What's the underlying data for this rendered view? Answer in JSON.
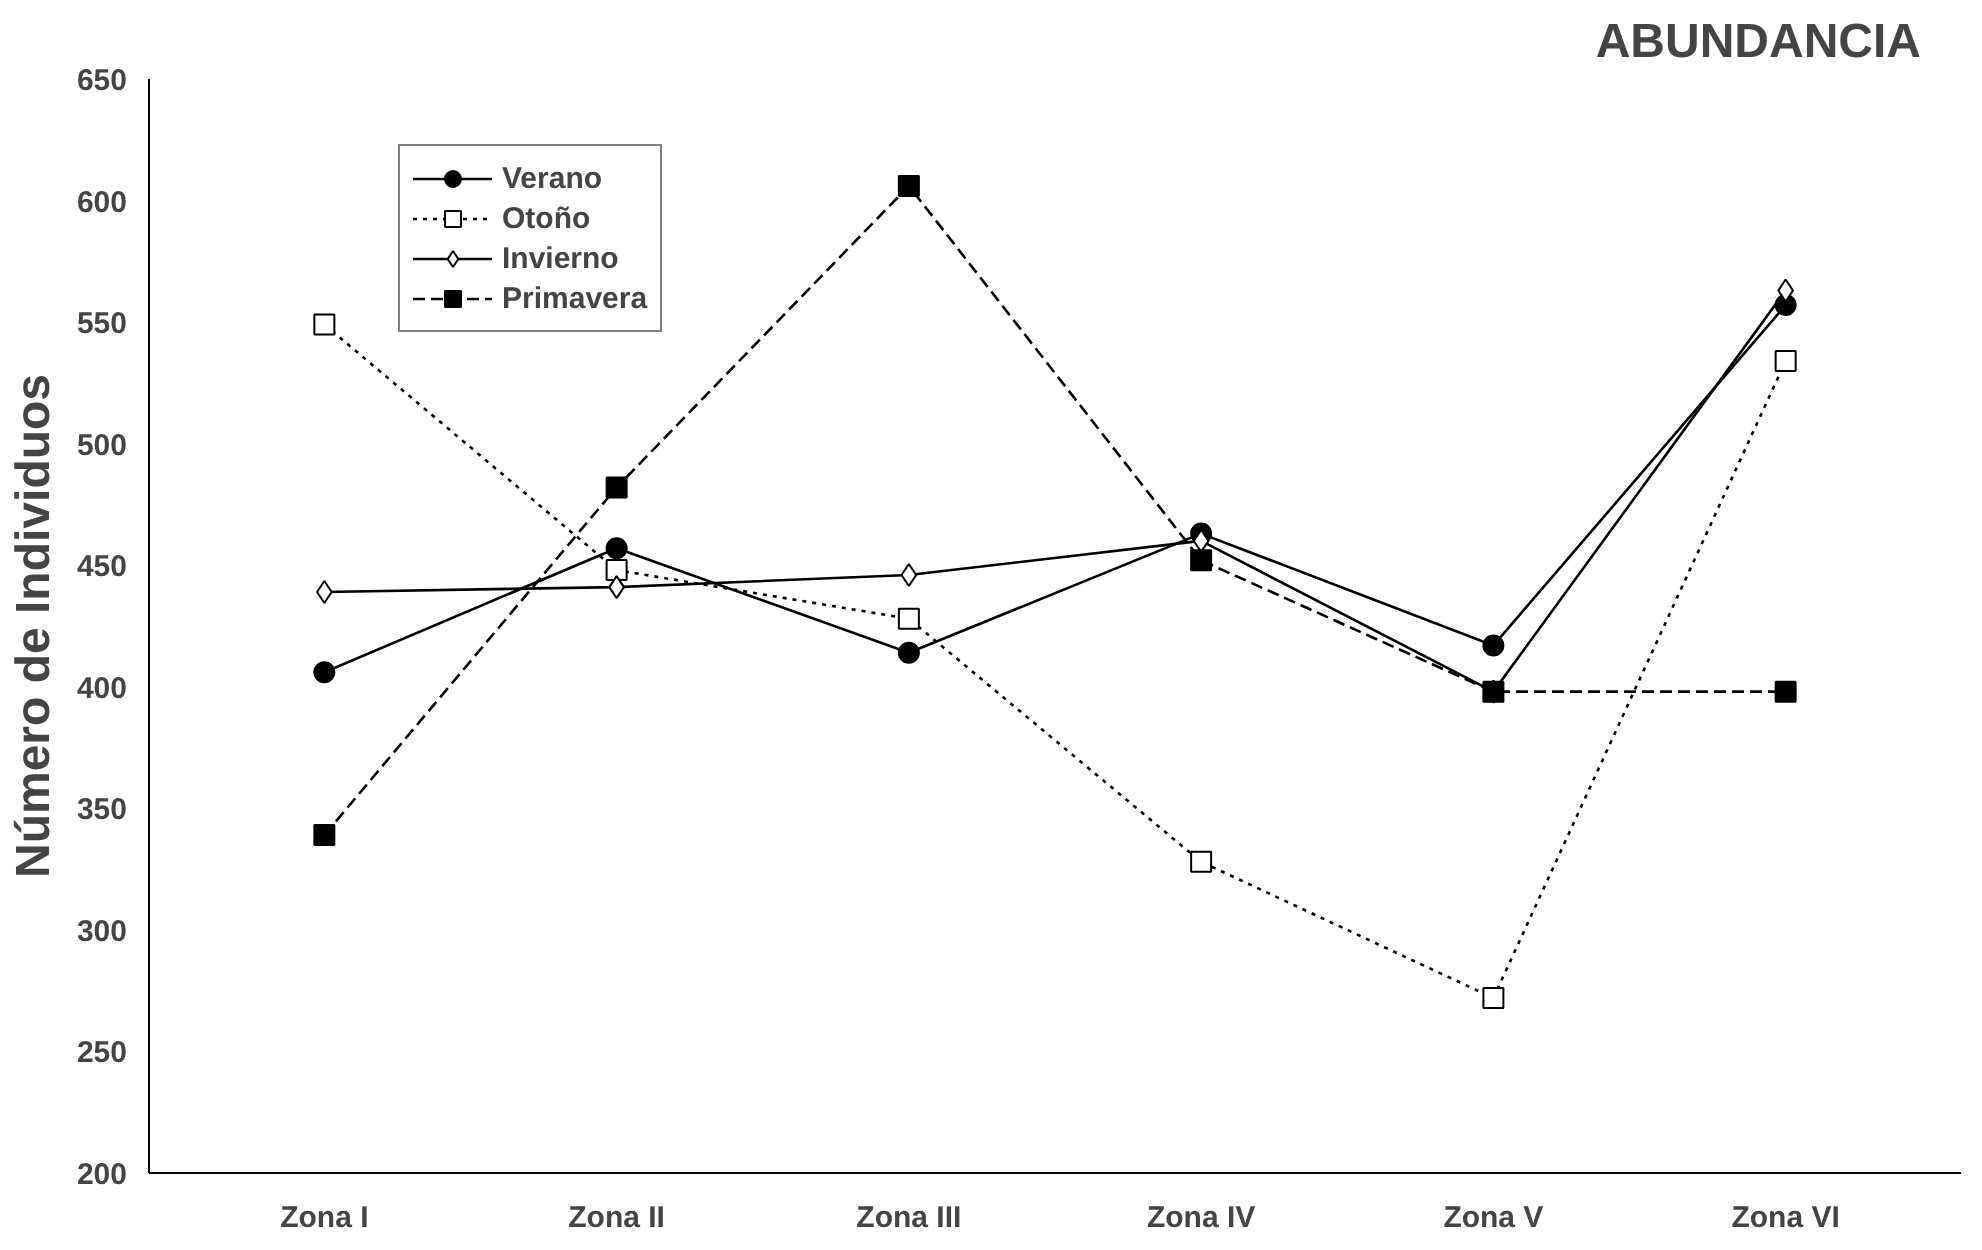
{
  "chart_data": {
    "type": "line",
    "title": "ABUNDANCIA",
    "ylabel": "Número de Individuos",
    "categories": [
      "Zona I",
      "Zona II",
      "Zona III",
      "Zona IV",
      "Zona V",
      "Zona VI"
    ],
    "ylim": [
      200,
      650
    ],
    "yticks": [
      200,
      250,
      300,
      350,
      400,
      450,
      500,
      550,
      600,
      650
    ],
    "grid": false,
    "legend": "top left",
    "series": [
      {
        "name": "Verano",
        "color": "#000000",
        "marker": "circle",
        "line_style": "solid",
        "values": [
          406,
          457,
          414,
          463,
          417,
          557
        ]
      },
      {
        "name": "Otoño",
        "color": "#000000",
        "marker": "square",
        "line_style": "dotted",
        "values": [
          549,
          448,
          428,
          328,
          272,
          534
        ]
      },
      {
        "name": "Invierno",
        "color": "#000000",
        "marker": "diamond",
        "line_style": "solid",
        "values": [
          439,
          441,
          446,
          460,
          398,
          563
        ]
      },
      {
        "name": "Primavera",
        "color": "#000000",
        "marker": "square",
        "line_style": "dashed",
        "values": [
          339,
          482,
          606,
          452,
          398,
          398
        ]
      }
    ]
  }
}
